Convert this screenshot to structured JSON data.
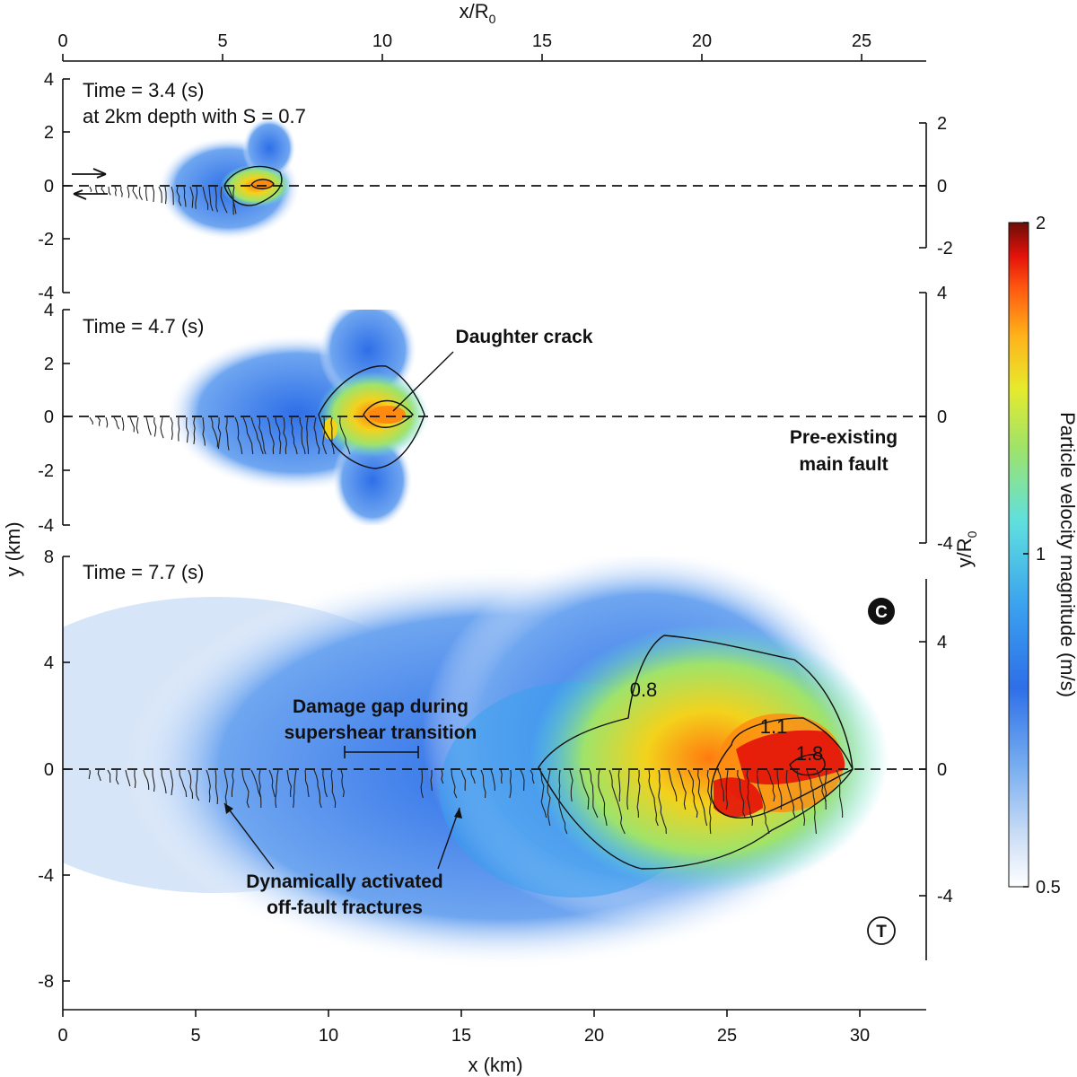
{
  "chart_data": {
    "type": "heatmap",
    "top_axis": {
      "label": "x/R",
      "label_sub": "0",
      "ticks": [
        "0",
        "5",
        "10",
        "15",
        "20",
        "25"
      ]
    },
    "bottom_axis": {
      "label": "x (km)",
      "ticks": [
        "0",
        "5",
        "10",
        "15",
        "20",
        "25",
        "30"
      ],
      "range": [
        0,
        32.5
      ]
    },
    "left_axis_label": "y (km)",
    "right_axis_label": "y/R",
    "right_axis_label_sub": "0",
    "panels": [
      {
        "id": "t34",
        "title": "Time = 3.4 (s)",
        "subtitle": "at 2km depth with S = 0.7",
        "y_range": [
          -4,
          4
        ],
        "y_ticks": [
          "4",
          "2",
          "0",
          "-2",
          "-4"
        ],
        "right_ticks": [
          "2",
          "0",
          "-2"
        ]
      },
      {
        "id": "t47",
        "title": "Time = 4.7 (s)",
        "y_range": [
          -4,
          4
        ],
        "y_ticks": [
          "4",
          "2",
          "0",
          "-2",
          "-4"
        ],
        "right_ticks": [
          "4",
          "0",
          "-4"
        ],
        "annotations": [
          "Daughter crack",
          "Pre-existing",
          "main fault"
        ]
      },
      {
        "id": "t77",
        "title": "Time = 7.7 (s)",
        "y_range": [
          -9,
          8
        ],
        "y_ticks": [
          "8",
          "4",
          "0",
          "-4",
          "-8"
        ],
        "right_ticks": [
          "4",
          "0",
          "-4"
        ],
        "contour_labels": [
          "0.8",
          "1.1",
          "1.8"
        ],
        "annotations": [
          "Damage gap during",
          "supershear transition",
          "Dynamically activated",
          "off-fault fractures"
        ],
        "markers": [
          "C",
          "T"
        ]
      }
    ],
    "colorbar": {
      "label": "Particle velocity magnitude (m/s)",
      "min": 0.5,
      "max": 2,
      "ticks": [
        "2",
        "1",
        "0.5"
      ],
      "colors": [
        "#ffffff",
        "#c9dcf5",
        "#78aef0",
        "#2e6fe8",
        "#3aa0ef",
        "#5fe0de",
        "#9fe36a",
        "#e6ea2d",
        "#ffb21a",
        "#ff5a10",
        "#e3120a",
        "#6b0d08"
      ]
    }
  }
}
